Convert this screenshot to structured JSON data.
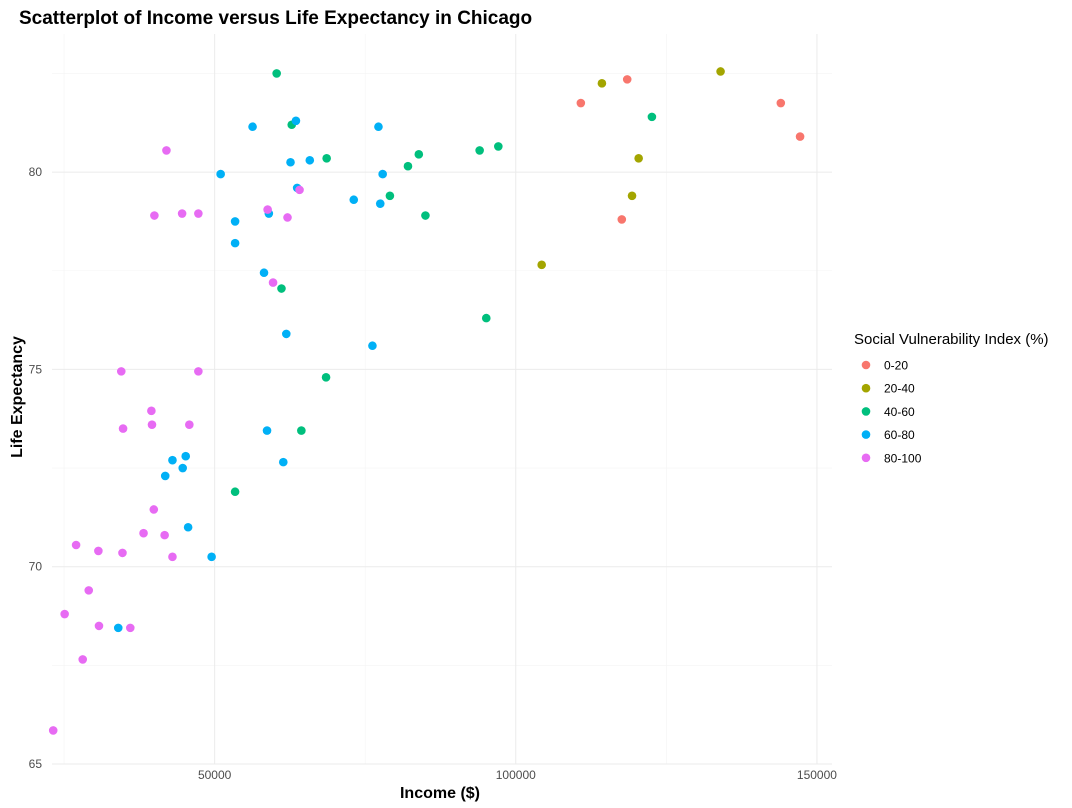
{
  "chart_data": {
    "type": "scatter",
    "title": "Scatterplot of Income versus Life Expectancy in Chicago",
    "xlabel": "Income ($)",
    "ylabel": "Life Expectancy",
    "xlim": [
      23000,
      152500
    ],
    "ylim": [
      65,
      83.5
    ],
    "x_ticks": [
      50000,
      100000,
      150000
    ],
    "x_tick_labels": [
      "50000",
      "100000",
      "150000"
    ],
    "y_ticks": [
      65,
      70,
      75,
      80
    ],
    "y_tick_labels": [
      "65",
      "70",
      "75",
      "80"
    ],
    "grid": true,
    "legend": {
      "title": "Social Vulnerability Index (%)",
      "position": "right"
    },
    "series": [
      {
        "name": "0-20",
        "color": "#F8766D",
        "points": [
          [
            110800,
            81.75
          ],
          [
            118500,
            82.35
          ],
          [
            117600,
            78.8
          ],
          [
            144000,
            81.75
          ],
          [
            147200,
            80.9
          ]
        ]
      },
      {
        "name": "20-40",
        "color": "#A3A500",
        "points": [
          [
            114300,
            82.25
          ],
          [
            134000,
            82.55
          ],
          [
            120400,
            80.35
          ],
          [
            119300,
            79.4
          ],
          [
            104300,
            77.65
          ]
        ]
      },
      {
        "name": "40-60",
        "color": "#00BF7D",
        "points": [
          [
            60300,
            82.5
          ],
          [
            62800,
            81.2
          ],
          [
            68600,
            80.35
          ],
          [
            82100,
            80.15
          ],
          [
            83900,
            80.45
          ],
          [
            94000,
            80.55
          ],
          [
            97100,
            80.65
          ],
          [
            122600,
            81.4
          ],
          [
            79100,
            79.4
          ],
          [
            85000,
            78.9
          ],
          [
            61100,
            77.05
          ],
          [
            95100,
            76.3
          ],
          [
            68500,
            74.8
          ],
          [
            64400,
            73.45
          ],
          [
            53400,
            71.9
          ]
        ]
      },
      {
        "name": "60-80",
        "color": "#00B0F6",
        "points": [
          [
            56300,
            81.15
          ],
          [
            63500,
            81.3
          ],
          [
            77200,
            81.15
          ],
          [
            62600,
            80.25
          ],
          [
            65800,
            80.3
          ],
          [
            51000,
            79.95
          ],
          [
            77900,
            79.95
          ],
          [
            63700,
            79.6
          ],
          [
            73100,
            79.3
          ],
          [
            77500,
            79.2
          ],
          [
            59000,
            78.95
          ],
          [
            53400,
            78.75
          ],
          [
            53400,
            78.2
          ],
          [
            58200,
            77.45
          ],
          [
            61900,
            75.9
          ],
          [
            76200,
            75.6
          ],
          [
            58700,
            73.45
          ],
          [
            61400,
            72.65
          ],
          [
            45200,
            72.8
          ],
          [
            43000,
            72.7
          ],
          [
            44700,
            72.5
          ],
          [
            41800,
            72.3
          ],
          [
            45600,
            71.0
          ],
          [
            49500,
            70.25
          ],
          [
            34000,
            68.45
          ]
        ]
      },
      {
        "name": "80-100",
        "color": "#E76BF3",
        "points": [
          [
            42000,
            80.55
          ],
          [
            40000,
            78.9
          ],
          [
            44600,
            78.95
          ],
          [
            47300,
            78.95
          ],
          [
            58800,
            79.05
          ],
          [
            62100,
            78.85
          ],
          [
            64100,
            79.55
          ],
          [
            59700,
            77.2
          ],
          [
            34500,
            74.95
          ],
          [
            47300,
            74.95
          ],
          [
            39500,
            73.95
          ],
          [
            39600,
            73.6
          ],
          [
            34800,
            73.5
          ],
          [
            45800,
            73.6
          ],
          [
            39900,
            71.45
          ],
          [
            38200,
            70.85
          ],
          [
            41700,
            70.8
          ],
          [
            43000,
            70.25
          ],
          [
            27000,
            70.55
          ],
          [
            30700,
            70.4
          ],
          [
            34700,
            70.35
          ],
          [
            29100,
            69.4
          ],
          [
            25100,
            68.8
          ],
          [
            30800,
            68.5
          ],
          [
            36000,
            68.45
          ],
          [
            28100,
            67.65
          ],
          [
            23200,
            65.85
          ]
        ]
      }
    ]
  }
}
